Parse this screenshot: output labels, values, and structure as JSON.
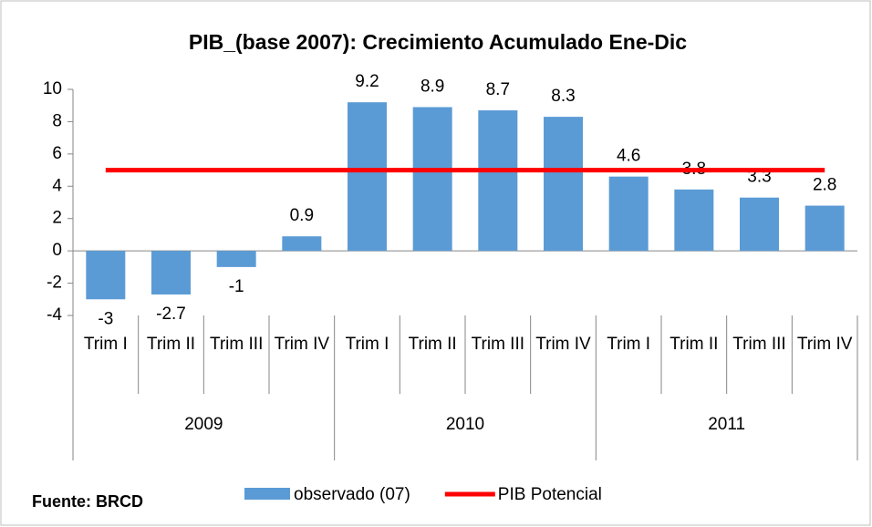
{
  "chart_data": {
    "type": "bar",
    "title": "PIB_(base 2007): Crecimiento Acumulado Ene-Dic",
    "source": "Fuente: BRCD",
    "categories": [
      "Trim I",
      "Trim II",
      "Trim III",
      "Trim IV",
      "Trim I",
      "Trim II",
      "Trim III",
      "Trim IV",
      "Trim I",
      "Trim II",
      "Trim III",
      "Trim IV"
    ],
    "groups": [
      "2009",
      "2010",
      "2011"
    ],
    "series": [
      {
        "name": "observado (07)",
        "type": "bar",
        "color": "#5b9bd5",
        "values": [
          -3,
          -2.7,
          -1,
          0.9,
          9.2,
          8.9,
          8.7,
          8.3,
          4.6,
          3.8,
          3.3,
          2.8
        ]
      },
      {
        "name": "PIB Potencial",
        "type": "line",
        "color": "#ff0000",
        "values": [
          5,
          5,
          5,
          5,
          5,
          5,
          5,
          5,
          5,
          5,
          5,
          5
        ]
      }
    ],
    "ylim": [
      -4,
      10
    ],
    "yticks": [
      -4,
      -2,
      0,
      2,
      4,
      6,
      8,
      10
    ],
    "grid": false
  }
}
